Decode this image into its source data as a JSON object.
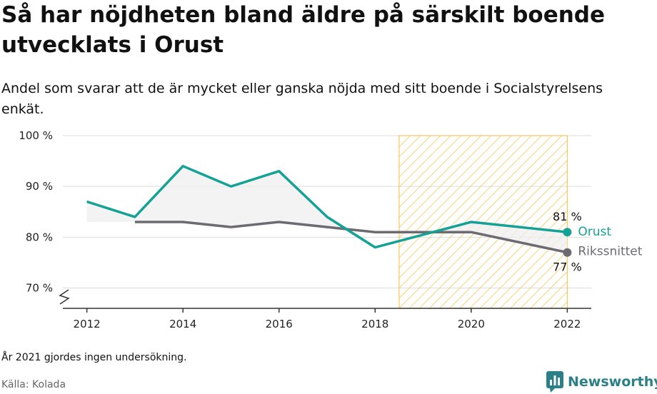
{
  "header": {
    "title": "Så har nöjdheten bland äldre på särskilt boende utvecklats i Orust",
    "subtitle": "Andel som svarar att de är mycket eller ganska nöjda med sitt boende i Socialstyrelsens enkät."
  },
  "footer": {
    "note": "År 2021 gjordes ingen undersökning.",
    "source": "Källa: Kolada",
    "brand": "Newsworthy"
  },
  "colors": {
    "orust": "#14a196",
    "riks": "#6e6a72",
    "highlight": "#f7c65a",
    "grid": "#dcdcdc",
    "brand": "#2b7f86"
  },
  "chart_data": {
    "type": "line",
    "x_ticks": [
      "2012",
      "2014",
      "2016",
      "2018",
      "2020",
      "2022"
    ],
    "y_ticks": [
      "70 %",
      "80 %",
      "90 %",
      "100 %"
    ],
    "xlim": [
      2011.5,
      2022.5
    ],
    "ylim": [
      66,
      100
    ],
    "highlight_range": [
      2018.5,
      2022
    ],
    "series": [
      {
        "name": "Orust",
        "x": [
          2012,
          2013,
          2014,
          2015,
          2016,
          2017,
          2018,
          2020,
          2022
        ],
        "values": [
          87,
          84,
          94,
          90,
          93,
          84,
          78,
          83,
          81
        ],
        "end_label": "81 %"
      },
      {
        "name": "Rikssnittet",
        "x": [
          2013,
          2014,
          2015,
          2016,
          2017,
          2018,
          2020,
          2022
        ],
        "values": [
          83,
          83,
          82,
          83,
          82,
          81,
          81,
          77
        ],
        "end_label": "77 %"
      }
    ]
  }
}
